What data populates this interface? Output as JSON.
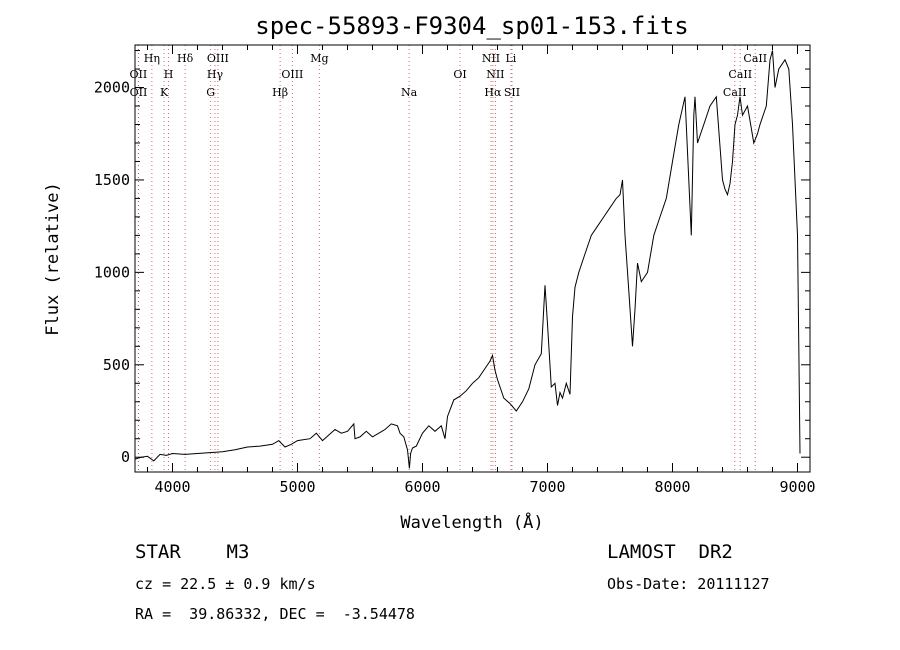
{
  "chart_data": {
    "type": "line",
    "title": "spec-55893-F9304_sp01-153.fits",
    "xlabel": "Wavelength (Å)",
    "ylabel": "Flux (relative)",
    "xlim": [
      3700,
      9100
    ],
    "ylim": [
      -80,
      2230
    ],
    "x_major_ticks": [
      4000,
      5000,
      6000,
      7000,
      8000,
      9000
    ],
    "y_major_ticks": [
      0,
      500,
      1000,
      1500,
      2000
    ],
    "grid": false,
    "series": [
      {
        "x": [
          3700,
          3750,
          3800,
          3850,
          3900,
          3950,
          4000,
          4100,
          4200,
          4300,
          4400,
          4500,
          4600,
          4700,
          4800,
          4850,
          4900,
          4950,
          5000,
          5100,
          5150,
          5200,
          5250,
          5300,
          5350,
          5400,
          5450,
          5460,
          5500,
          5550,
          5600,
          5650,
          5700,
          5750,
          5800,
          5820,
          5850,
          5880,
          5895,
          5905,
          5920,
          5950,
          6000,
          6050,
          6100,
          6150,
          6180,
          6200,
          6250,
          6300,
          6350,
          6400,
          6450,
          6500,
          6540,
          6560,
          6580,
          6600,
          6650,
          6700,
          6750,
          6800,
          6850,
          6900,
          6950,
          6980,
          7000,
          7030,
          7060,
          7080,
          7100,
          7120,
          7150,
          7180,
          7200,
          7220,
          7250,
          7300,
          7350,
          7400,
          7450,
          7500,
          7550,
          7580,
          7600,
          7620,
          7650,
          7680,
          7700,
          7720,
          7750,
          7800,
          7850,
          7900,
          7950,
          8000,
          8050,
          8100,
          8150,
          8170,
          8180,
          8200,
          8250,
          8300,
          8350,
          8400,
          8420,
          8440,
          8460,
          8480,
          8500,
          8520,
          8540,
          8560,
          8600,
          8650,
          8680,
          8700,
          8750,
          8780,
          8800,
          8820,
          8850,
          8900,
          8930,
          8960,
          9000,
          9010,
          9020
        ],
        "y": [
          -10,
          0,
          5,
          -20,
          15,
          10,
          20,
          15,
          20,
          25,
          30,
          40,
          55,
          60,
          70,
          90,
          55,
          70,
          90,
          100,
          130,
          90,
          120,
          150,
          130,
          140,
          180,
          100,
          110,
          140,
          110,
          130,
          150,
          180,
          170,
          130,
          110,
          40,
          -60,
          20,
          50,
          60,
          130,
          170,
          140,
          170,
          100,
          220,
          310,
          330,
          360,
          400,
          430,
          480,
          520,
          550,
          470,
          420,
          320,
          290,
          250,
          300,
          370,
          500,
          560,
          930,
          720,
          380,
          400,
          280,
          350,
          320,
          400,
          340,
          760,
          920,
          1000,
          1100,
          1200,
          1250,
          1300,
          1350,
          1400,
          1420,
          1500,
          1200,
          900,
          600,
          800,
          1050,
          950,
          1000,
          1200,
          1300,
          1400,
          1600,
          1800,
          1950,
          1200,
          1850,
          1950,
          1700,
          1800,
          1900,
          1950,
          1500,
          1450,
          1420,
          1480,
          1600,
          1800,
          1850,
          1950,
          1850,
          1900,
          1700,
          1750,
          1800,
          1900,
          2150,
          2200,
          2000,
          2100,
          2150,
          2100,
          1800,
          1200,
          600,
          20
        ]
      }
    ],
    "lines": [
      {
        "label": "OII",
        "x": 3727,
        "row": 1
      },
      {
        "label": "Hη",
        "x": 3835,
        "row": 0
      },
      {
        "label": "OII",
        "x": 3728,
        "row": 2
      },
      {
        "label": "H",
        "x": 3968,
        "row": 1
      },
      {
        "label": "K",
        "x": 3933,
        "row": 2
      },
      {
        "label": "Hδ",
        "x": 4101,
        "row": 0
      },
      {
        "label": "OIII",
        "x": 4363,
        "row": 0
      },
      {
        "label": "Hγ",
        "x": 4340,
        "row": 1
      },
      {
        "label": "G",
        "x": 4305,
        "row": 2
      },
      {
        "label": "Hβ",
        "x": 4861,
        "row": 2
      },
      {
        "label": "OIII",
        "x": 4959,
        "row": 1
      },
      {
        "label": "Mg",
        "x": 5175,
        "row": 0
      },
      {
        "label": "Na",
        "x": 5893,
        "row": 2
      },
      {
        "label": "OI",
        "x": 6300,
        "row": 1
      },
      {
        "label": "NII",
        "x": 6548,
        "row": 0
      },
      {
        "label": "Li",
        "x": 6707,
        "row": 0
      },
      {
        "label": "NII",
        "x": 6583,
        "row": 1
      },
      {
        "label": "Hα",
        "x": 6563,
        "row": 2
      },
      {
        "label": "SII",
        "x": 6716,
        "row": 2
      },
      {
        "label": "CaII",
        "x": 8662,
        "row": 0
      },
      {
        "label": "CaII",
        "x": 8542,
        "row": 1
      },
      {
        "label": "CaII",
        "x": 8498,
        "row": 2
      }
    ],
    "line_color": "#c07070"
  },
  "footer": {
    "object": "STAR    M3",
    "survey": "LAMOST  DR2",
    "cz": "cz = 22.5 ± 0.9 km/s",
    "obs_date": "Obs-Date: 20111127",
    "coords": "RA =  39.86332, DEC =  -3.54478"
  }
}
